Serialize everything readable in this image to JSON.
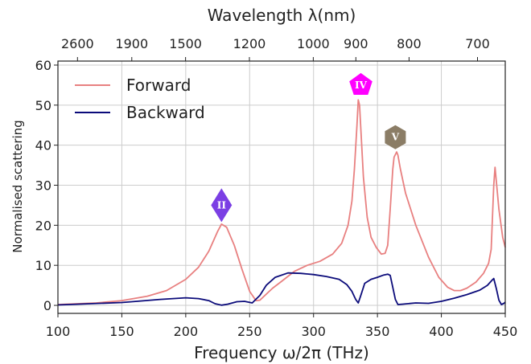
{
  "chart_data": {
    "type": "line",
    "xlabel": "Frequency ω/2π (THz)",
    "ylabel": "Normalised scattering",
    "top_xlabel": "Wavelength λ(nm)",
    "xlim": [
      100,
      450
    ],
    "ylim": [
      -2,
      61
    ],
    "x_ticks": [
      100,
      150,
      200,
      250,
      300,
      350,
      400,
      450
    ],
    "y_ticks": [
      0,
      10,
      20,
      30,
      40,
      50,
      60
    ],
    "top_ticks": [
      2600,
      1900,
      1500,
      1200,
      1000,
      900,
      800,
      700
    ],
    "grid": true,
    "legend_position": "top-left",
    "series": [
      {
        "name": "Forward",
        "color": "#e88080",
        "x": [
          100,
          130,
          150,
          170,
          185,
          200,
          210,
          218,
          225,
          228,
          232,
          238,
          244,
          250,
          255,
          258,
          262,
          268,
          275,
          285,
          295,
          305,
          315,
          322,
          327,
          330,
          332,
          334,
          335,
          336,
          337,
          339,
          342,
          345,
          349,
          353,
          356,
          358,
          360,
          362,
          363,
          365,
          366,
          368,
          372,
          380,
          390,
          398,
          405,
          410,
          415,
          420,
          427,
          433,
          437,
          439,
          440,
          441,
          442,
          443,
          445,
          448,
          450
        ],
        "y": [
          0.2,
          0.6,
          1.2,
          2.3,
          3.7,
          6.5,
          9.5,
          13.5,
          18.5,
          20.3,
          19.5,
          15,
          9,
          3.5,
          1.2,
          1.3,
          2.5,
          4.3,
          6,
          8.5,
          10,
          11,
          12.8,
          15.5,
          20,
          26,
          34,
          45,
          51.3,
          50,
          44,
          32,
          22,
          17,
          14.5,
          12.8,
          13,
          15,
          24,
          34,
          37,
          38.3,
          37.5,
          34,
          28,
          20,
          12,
          7,
          4.5,
          3.7,
          3.7,
          4.3,
          5.8,
          8,
          10.5,
          14,
          22,
          30,
          34.5,
          31,
          24,
          17,
          14.5
        ]
      },
      {
        "name": "Backward",
        "color": "#0b0b7a",
        "x": [
          100,
          150,
          180,
          200,
          210,
          218,
          223,
          228,
          233,
          240,
          246,
          252,
          258,
          263,
          270,
          280,
          290,
          300,
          310,
          320,
          326,
          330,
          333,
          335,
          337,
          340,
          345,
          350,
          355,
          358,
          360,
          362,
          364,
          366,
          370,
          380,
          390,
          400,
          410,
          420,
          430,
          436,
          440,
          441,
          443,
          445,
          447,
          449,
          450
        ],
        "y": [
          0.1,
          0.7,
          1.5,
          1.9,
          1.7,
          1.2,
          0.4,
          0.05,
          0.3,
          0.9,
          1.0,
          0.6,
          2.5,
          5,
          7,
          8.1,
          8,
          7.7,
          7.2,
          6.5,
          5.2,
          3.5,
          1.5,
          0.6,
          2.5,
          5.5,
          6.5,
          7,
          7.6,
          7.8,
          7.5,
          4.5,
          1.5,
          0.2,
          0.3,
          0.6,
          0.5,
          1.0,
          1.8,
          2.7,
          3.8,
          5,
          6.4,
          6.7,
          4.2,
          1.3,
          0.2,
          0.5,
          0.8
        ]
      }
    ],
    "markers": [
      {
        "label": "II",
        "shape": "diamond",
        "color": "#7b3fe4",
        "x": 228,
        "y": 25
      },
      {
        "label": "IV",
        "shape": "pentagon",
        "color": "#ff00ff",
        "x": 337,
        "y": 55
      },
      {
        "label": "V",
        "shape": "hexagon",
        "color": "#8b7d66",
        "x": 364,
        "y": 42
      }
    ]
  }
}
